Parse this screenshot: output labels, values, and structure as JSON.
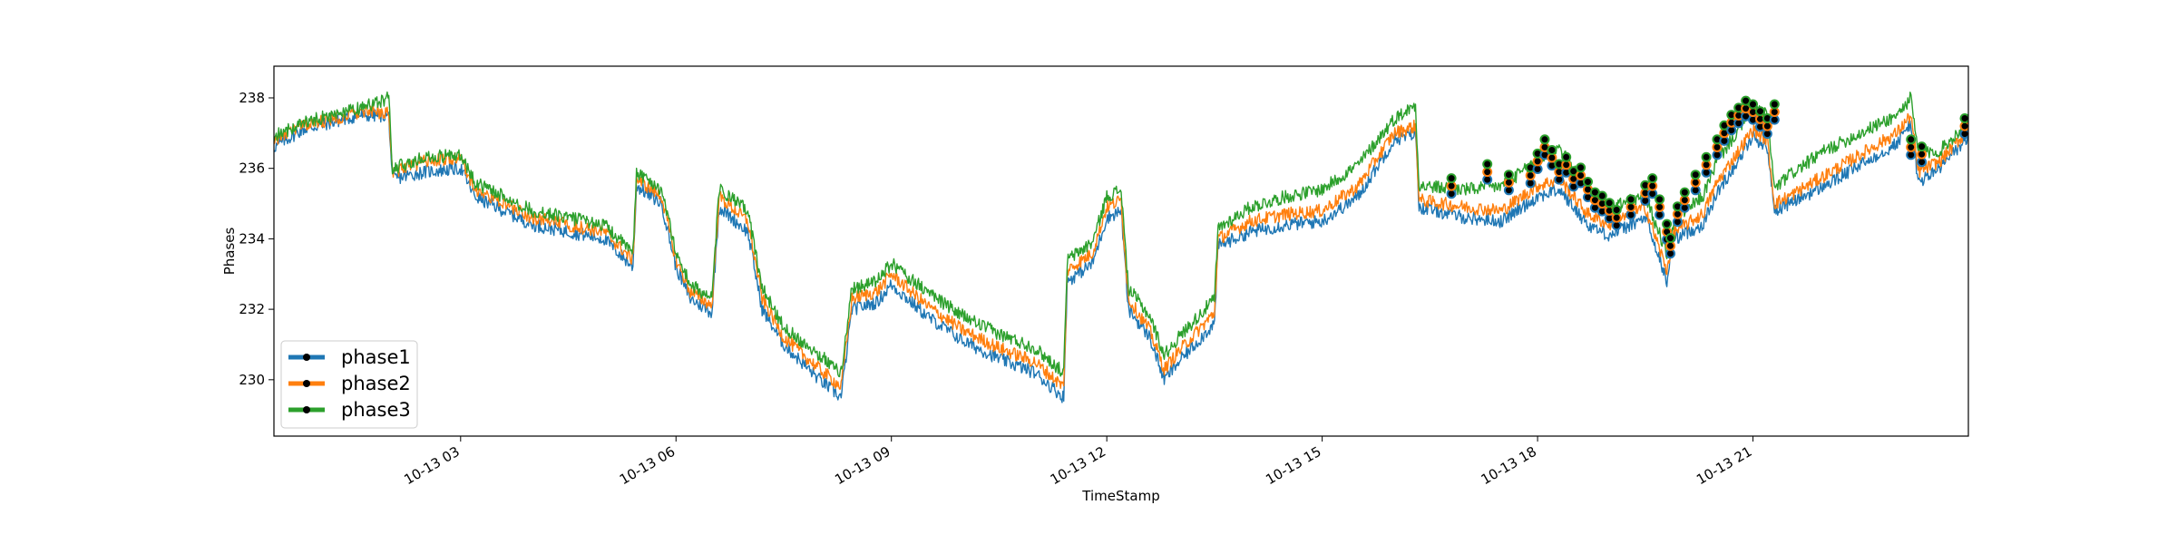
{
  "chart_data": {
    "type": "line",
    "xlabel": "TimeStamp",
    "ylabel": "Phases",
    "xlim": [
      0.4,
      24.0
    ],
    "ylim": [
      228.4,
      238.9
    ],
    "x_ticks": [
      {
        "value": 3,
        "label": "10-13 03"
      },
      {
        "value": 6,
        "label": "10-13 06"
      },
      {
        "value": 9,
        "label": "10-13 09"
      },
      {
        "value": 12,
        "label": "10-13 12"
      },
      {
        "value": 15,
        "label": "10-13 15"
      },
      {
        "value": 18,
        "label": "10-13 18"
      },
      {
        "value": 21,
        "label": "10-13 21"
      }
    ],
    "y_ticks": [
      {
        "value": 230,
        "label": "230"
      },
      {
        "value": 232,
        "label": "232"
      },
      {
        "value": 234,
        "label": "234"
      },
      {
        "value": 236,
        "label": "236"
      },
      {
        "value": 238,
        "label": "238"
      }
    ],
    "legend": {
      "position": "lower-left",
      "entries": [
        "phase1",
        "phase2",
        "phase3"
      ]
    },
    "series": [
      {
        "name": "phase1",
        "color": "#1f77b4",
        "x": [
          0.4,
          0.8,
          1.2,
          1.6,
          2.0,
          2.05,
          2.5,
          3.0,
          3.2,
          3.5,
          4.0,
          4.5,
          5.0,
          5.4,
          5.45,
          5.8,
          6.0,
          6.2,
          6.5,
          6.6,
          7.0,
          7.2,
          7.5,
          8.0,
          8.3,
          8.45,
          8.8,
          9.0,
          9.5,
          10.0,
          10.5,
          11.0,
          11.4,
          11.45,
          11.8,
          12.0,
          12.2,
          12.3,
          12.6,
          12.8,
          13.0,
          13.5,
          13.55,
          14.0,
          14.5,
          15.0,
          15.5,
          16.0,
          16.3,
          16.35,
          17.0,
          17.5,
          18.0,
          18.3,
          18.7,
          19.0,
          19.5,
          19.8,
          19.9,
          20.3,
          20.5,
          21.0,
          21.2,
          21.3,
          21.5,
          22.0,
          22.5,
          23.0,
          23.2,
          23.3,
          23.6,
          24.0
        ],
        "y": [
          236.6,
          237.1,
          237.3,
          237.5,
          237.5,
          235.7,
          235.9,
          236.0,
          235.2,
          234.9,
          234.4,
          234.2,
          234.0,
          233.2,
          235.5,
          235.0,
          233.2,
          232.3,
          231.9,
          234.9,
          234.2,
          232.0,
          231.0,
          230.0,
          229.5,
          232.0,
          232.2,
          232.7,
          231.8,
          231.1,
          230.6,
          230.2,
          229.5,
          232.8,
          233.3,
          234.6,
          234.8,
          232.0,
          231.2,
          230.0,
          230.5,
          231.6,
          233.8,
          234.2,
          234.4,
          234.5,
          235.2,
          236.8,
          237.0,
          234.9,
          234.6,
          234.5,
          235.2,
          235.4,
          234.4,
          234.1,
          234.6,
          232.8,
          234.0,
          234.4,
          235.3,
          236.9,
          236.6,
          234.8,
          235.0,
          235.5,
          236.1,
          236.7,
          237.3,
          235.6,
          236.0,
          236.9
        ]
      },
      {
        "name": "phase2",
        "color": "#ff7f0e",
        "x": [
          0.4,
          0.8,
          1.2,
          1.6,
          2.0,
          2.05,
          2.5,
          3.0,
          3.2,
          3.5,
          4.0,
          4.5,
          5.0,
          5.4,
          5.45,
          5.8,
          6.0,
          6.2,
          6.5,
          6.6,
          7.0,
          7.2,
          7.5,
          8.0,
          8.3,
          8.45,
          8.8,
          9.0,
          9.5,
          10.0,
          10.5,
          11.0,
          11.4,
          11.45,
          11.8,
          12.0,
          12.2,
          12.3,
          12.6,
          12.8,
          13.0,
          13.5,
          13.55,
          14.0,
          14.5,
          15.0,
          15.5,
          16.0,
          16.3,
          16.35,
          17.0,
          17.5,
          18.0,
          18.3,
          18.7,
          19.0,
          19.5,
          19.8,
          19.9,
          20.3,
          20.5,
          21.0,
          21.2,
          21.3,
          21.5,
          22.0,
          22.5,
          23.0,
          23.2,
          23.3,
          23.6,
          24.0
        ],
        "y": [
          236.8,
          237.2,
          237.4,
          237.6,
          237.6,
          235.9,
          236.2,
          236.3,
          235.4,
          235.1,
          234.6,
          234.4,
          234.2,
          233.4,
          235.7,
          235.2,
          233.4,
          232.5,
          232.1,
          235.2,
          234.5,
          232.3,
          231.2,
          230.3,
          229.8,
          232.3,
          232.5,
          233.0,
          232.1,
          231.4,
          230.9,
          230.5,
          229.8,
          233.1,
          233.6,
          234.9,
          235.1,
          232.3,
          231.4,
          230.3,
          230.8,
          231.9,
          234.0,
          234.5,
          234.7,
          234.8,
          235.5,
          237.0,
          237.2,
          235.1,
          234.9,
          234.8,
          235.5,
          235.7,
          234.7,
          234.4,
          234.9,
          233.1,
          234.2,
          234.7,
          235.6,
          237.1,
          236.8,
          235.0,
          235.2,
          235.8,
          236.4,
          237.0,
          237.5,
          235.9,
          236.2,
          237.1
        ]
      },
      {
        "name": "phase3",
        "color": "#2ca02c",
        "x": [
          0.4,
          0.8,
          1.2,
          1.6,
          2.0,
          2.05,
          2.5,
          3.0,
          3.2,
          3.5,
          4.0,
          4.5,
          5.0,
          5.4,
          5.45,
          5.8,
          6.0,
          6.2,
          6.5,
          6.6,
          7.0,
          7.2,
          7.5,
          8.0,
          8.3,
          8.45,
          8.8,
          9.0,
          9.5,
          10.0,
          10.5,
          11.0,
          11.4,
          11.45,
          11.8,
          12.0,
          12.2,
          12.3,
          12.6,
          12.8,
          13.0,
          13.5,
          13.55,
          14.0,
          14.5,
          15.0,
          15.5,
          16.0,
          16.3,
          16.35,
          17.0,
          17.5,
          18.0,
          18.3,
          18.7,
          19.0,
          19.5,
          19.8,
          19.9,
          20.3,
          20.5,
          21.0,
          21.2,
          21.3,
          21.5,
          22.0,
          22.5,
          23.0,
          23.2,
          23.3,
          23.6,
          24.0
        ],
        "y": [
          236.9,
          237.3,
          237.5,
          237.7,
          238.0,
          236.0,
          236.3,
          236.4,
          235.6,
          235.3,
          234.8,
          234.6,
          234.4,
          233.6,
          235.9,
          235.4,
          233.6,
          232.7,
          232.3,
          235.4,
          234.8,
          232.6,
          231.5,
          230.7,
          230.2,
          232.6,
          232.8,
          233.3,
          232.5,
          231.8,
          231.3,
          230.9,
          230.2,
          233.4,
          233.9,
          235.2,
          235.4,
          232.6,
          231.8,
          230.7,
          231.2,
          232.3,
          234.3,
          234.9,
          235.2,
          235.4,
          236.1,
          237.4,
          237.8,
          235.5,
          235.4,
          235.5,
          236.2,
          236.6,
          235.3,
          234.9,
          235.2,
          233.6,
          234.5,
          235.2,
          236.2,
          237.7,
          237.5,
          235.4,
          235.8,
          236.5,
          237.0,
          237.5,
          238.0,
          236.4,
          236.5,
          237.3
        ]
      }
    ],
    "anomaly_markers": {
      "marker_color": "#000000",
      "edge_colors": [
        "#1f77b4",
        "#ff7f0e",
        "#2ca02c"
      ],
      "x": [
        16.8,
        17.3,
        17.6,
        17.9,
        18.0,
        18.1,
        18.2,
        18.3,
        18.4,
        18.5,
        18.6,
        18.7,
        18.8,
        18.9,
        19.0,
        19.1,
        19.3,
        19.5,
        19.6,
        19.7,
        19.8,
        19.85,
        19.95,
        20.05,
        20.2,
        20.35,
        20.5,
        20.6,
        20.7,
        20.8,
        20.9,
        21.0,
        21.1,
        21.2,
        21.3,
        23.2,
        23.35,
        23.95
      ],
      "y": [
        235.5,
        235.9,
        235.6,
        235.8,
        236.2,
        236.6,
        236.3,
        235.9,
        236.1,
        235.7,
        235.8,
        235.4,
        235.1,
        235.0,
        234.8,
        234.6,
        234.9,
        235.3,
        235.5,
        234.9,
        234.2,
        233.8,
        234.7,
        235.1,
        235.6,
        236.1,
        236.6,
        237.0,
        237.3,
        237.5,
        237.7,
        237.6,
        237.4,
        237.2,
        237.6,
        236.6,
        236.4,
        237.2
      ]
    }
  }
}
